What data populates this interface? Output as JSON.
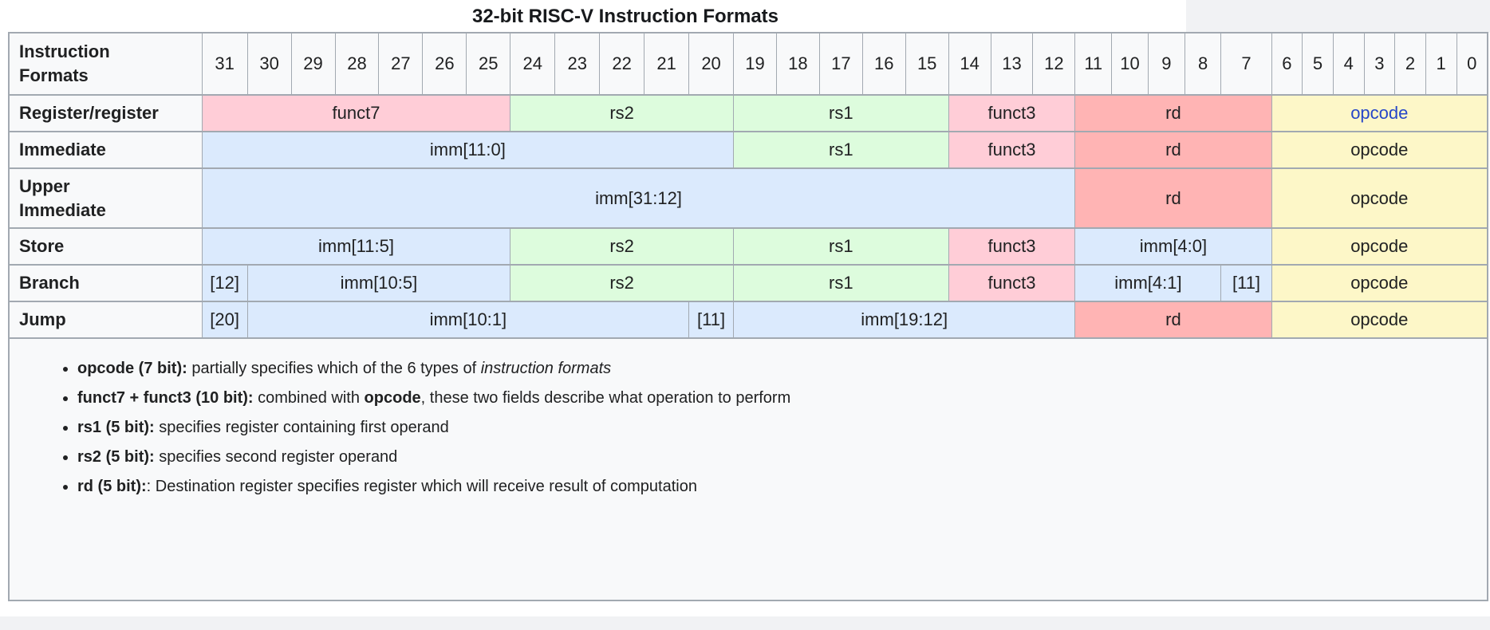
{
  "title": "32-bit RISC-V Instruction Formats",
  "colors": {
    "pink": "#ffcdd7",
    "green": "#ddfcdd",
    "blue": "#dbeafd",
    "salmon": "#ffb4b4",
    "yellow": "#fdf7c8",
    "header_bg": "#f8f9fa",
    "border": "#a2a9b1",
    "link_blue": "#2646c8",
    "text": "#202122"
  },
  "table": {
    "header_label": "Instruction Formats",
    "bits": [
      31,
      30,
      29,
      28,
      27,
      26,
      25,
      24,
      23,
      22,
      21,
      20,
      19,
      18,
      17,
      16,
      15,
      14,
      13,
      12,
      11,
      10,
      9,
      8,
      7,
      6,
      5,
      4,
      3,
      2,
      1,
      0
    ],
    "rows": [
      {
        "name": "Register/register",
        "wrap": false,
        "cells": [
          {
            "text": "funct7",
            "span": 7,
            "color": "pink"
          },
          {
            "text": "rs2",
            "span": 5,
            "color": "green"
          },
          {
            "text": "rs1",
            "span": 5,
            "color": "green"
          },
          {
            "text": "funct3",
            "span": 3,
            "color": "pink"
          },
          {
            "text": "rd",
            "span": 5,
            "color": "salmon"
          },
          {
            "text": "opcode",
            "span": 7,
            "color": "yellow",
            "link": true
          }
        ]
      },
      {
        "name": "Immediate",
        "wrap": false,
        "cells": [
          {
            "text": "imm[11:0]",
            "span": 12,
            "color": "blue"
          },
          {
            "text": "rs1",
            "span": 5,
            "color": "green"
          },
          {
            "text": "funct3",
            "span": 3,
            "color": "pink"
          },
          {
            "text": "rd",
            "span": 5,
            "color": "salmon"
          },
          {
            "text": "opcode",
            "span": 7,
            "color": "yellow"
          }
        ]
      },
      {
        "name": "Upper Immediate",
        "wrap": true,
        "cells": [
          {
            "text": "imm[31:12]",
            "span": 20,
            "color": "blue"
          },
          {
            "text": "rd",
            "span": 5,
            "color": "salmon"
          },
          {
            "text": "opcode",
            "span": 7,
            "color": "yellow"
          }
        ]
      },
      {
        "name": "Store",
        "wrap": false,
        "cells": [
          {
            "text": "imm[11:5]",
            "span": 7,
            "color": "blue"
          },
          {
            "text": "rs2",
            "span": 5,
            "color": "green"
          },
          {
            "text": "rs1",
            "span": 5,
            "color": "green"
          },
          {
            "text": "funct3",
            "span": 3,
            "color": "pink"
          },
          {
            "text": "imm[4:0]",
            "span": 5,
            "color": "blue"
          },
          {
            "text": "opcode",
            "span": 7,
            "color": "yellow"
          }
        ]
      },
      {
        "name": "Branch",
        "wrap": false,
        "cells": [
          {
            "text": "[12]",
            "span": 1,
            "color": "blue"
          },
          {
            "text": "imm[10:5]",
            "span": 6,
            "color": "blue"
          },
          {
            "text": "rs2",
            "span": 5,
            "color": "green"
          },
          {
            "text": "rs1",
            "span": 5,
            "color": "green"
          },
          {
            "text": "funct3",
            "span": 3,
            "color": "pink"
          },
          {
            "text": "imm[4:1]",
            "span": 4,
            "color": "blue"
          },
          {
            "text": "[11]",
            "span": 1,
            "color": "blue"
          },
          {
            "text": "opcode",
            "span": 7,
            "color": "yellow"
          }
        ]
      },
      {
        "name": "Jump",
        "wrap": false,
        "cells": [
          {
            "text": "[20]",
            "span": 1,
            "color": "blue"
          },
          {
            "text": "imm[10:1]",
            "span": 10,
            "color": "blue"
          },
          {
            "text": "[11]",
            "span": 1,
            "color": "blue"
          },
          {
            "text": "imm[19:12]",
            "span": 8,
            "color": "blue"
          },
          {
            "text": "rd",
            "span": 5,
            "color": "salmon"
          },
          {
            "text": "opcode",
            "span": 7,
            "color": "yellow"
          }
        ]
      }
    ]
  },
  "notes": [
    {
      "segments": [
        {
          "t": "opcode (7 bit):",
          "b": true
        },
        {
          "t": " partially specifies which of the 6 types of "
        },
        {
          "t": "instruction formats",
          "i": true
        }
      ]
    },
    {
      "segments": [
        {
          "t": "funct7 + funct3 (10 bit):",
          "b": true
        },
        {
          "t": " combined with "
        },
        {
          "t": "opcode",
          "b": true
        },
        {
          "t": ", these two fields describe what operation to perform"
        }
      ]
    },
    {
      "segments": [
        {
          "t": "rs1 (5 bit):",
          "b": true
        },
        {
          "t": " specifies register containing first operand"
        }
      ]
    },
    {
      "segments": [
        {
          "t": "rs2 (5 bit):",
          "b": true
        },
        {
          "t": " specifies second register operand"
        }
      ]
    },
    {
      "segments": [
        {
          "t": "rd (5 bit):",
          "b": true
        },
        {
          "t": ": Destination register specifies register which will receive result of computation"
        }
      ]
    }
  ]
}
